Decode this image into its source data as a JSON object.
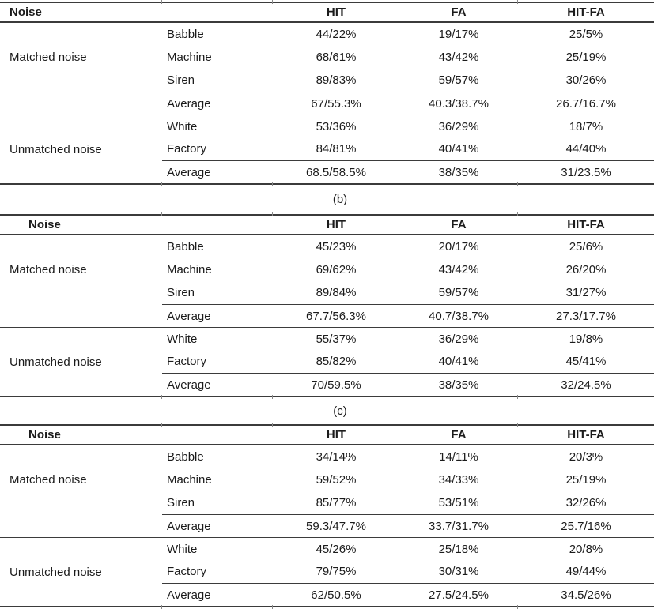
{
  "page": {
    "background": "#ffffff",
    "text_color": "#1b1b1b",
    "rule_color": "#3b3b3b"
  },
  "captions": {
    "b": "(b)",
    "c": "(c)"
  },
  "tables": [
    {
      "header": {
        "noise": "Noise",
        "hit": "HIT",
        "fa": "FA",
        "hitfa": "HIT-FA"
      },
      "matched": {
        "label": "Matched noise",
        "rows": [
          {
            "type": "Babble",
            "hit": "44/22%",
            "fa": "19/17%",
            "hitfa": "25/5%"
          },
          {
            "type": "Machine",
            "hit": "68/61%",
            "fa": "43/42%",
            "hitfa": "25/19%"
          },
          {
            "type": "Siren",
            "hit": "89/83%",
            "fa": "59/57%",
            "hitfa": "30/26%"
          }
        ],
        "average": {
          "type": "Average",
          "hit": "67/55.3%",
          "fa": "40.3/38.7%",
          "hitfa": "26.7/16.7%"
        }
      },
      "unmatched": {
        "label": "Unmatched noise",
        "rows": [
          {
            "type": "White",
            "hit": "53/36%",
            "fa": "36/29%",
            "hitfa": "18/7%"
          },
          {
            "type": "Factory",
            "hit": "84/81%",
            "fa": "40/41%",
            "hitfa": "44/40%"
          }
        ],
        "average": {
          "type": "Average",
          "hit": "68.5/58.5%",
          "fa": "38/35%",
          "hitfa": "31/23.5%"
        }
      }
    },
    {
      "header": {
        "noise": "Noise",
        "hit": "HIT",
        "fa": "FA",
        "hitfa": "HIT-FA"
      },
      "matched": {
        "label": "Matched noise",
        "rows": [
          {
            "type": "Babble",
            "hit": "45/23%",
            "fa": "20/17%",
            "hitfa": "25/6%"
          },
          {
            "type": "Machine",
            "hit": "69/62%",
            "fa": "43/42%",
            "hitfa": "26/20%"
          },
          {
            "type": "Siren",
            "hit": "89/84%",
            "fa": "59/57%",
            "hitfa": "31/27%"
          }
        ],
        "average": {
          "type": "Average",
          "hit": "67.7/56.3%",
          "fa": "40.7/38.7%",
          "hitfa": "27.3/17.7%"
        }
      },
      "unmatched": {
        "label": "Unmatched noise",
        "rows": [
          {
            "type": "White",
            "hit": "55/37%",
            "fa": "36/29%",
            "hitfa": "19/8%"
          },
          {
            "type": "Factory",
            "hit": "85/82%",
            "fa": "40/41%",
            "hitfa": "45/41%"
          }
        ],
        "average": {
          "type": "Average",
          "hit": "70/59.5%",
          "fa": "38/35%",
          "hitfa": "32/24.5%"
        }
      }
    },
    {
      "header": {
        "noise": "Noise",
        "hit": "HIT",
        "fa": "FA",
        "hitfa": "HIT-FA"
      },
      "matched": {
        "label": "Matched noise",
        "rows": [
          {
            "type": "Babble",
            "hit": "34/14%",
            "fa": "14/11%",
            "hitfa": "20/3%"
          },
          {
            "type": "Machine",
            "hit": "59/52%",
            "fa": "34/33%",
            "hitfa": "25/19%"
          },
          {
            "type": "Siren",
            "hit": "85/77%",
            "fa": "53/51%",
            "hitfa": "32/26%"
          }
        ],
        "average": {
          "type": "Average",
          "hit": "59.3/47.7%",
          "fa": "33.7/31.7%",
          "hitfa": "25.7/16%"
        }
      },
      "unmatched": {
        "label": "Unmatched noise",
        "rows": [
          {
            "type": "White",
            "hit": "45/26%",
            "fa": "25/18%",
            "hitfa": "20/8%"
          },
          {
            "type": "Factory",
            "hit": "79/75%",
            "fa": "30/31%",
            "hitfa": "49/44%"
          }
        ],
        "average": {
          "type": "Average",
          "hit": "62/50.5%",
          "fa": "27.5/24.5%",
          "hitfa": "34.5/26%"
        }
      }
    }
  ]
}
